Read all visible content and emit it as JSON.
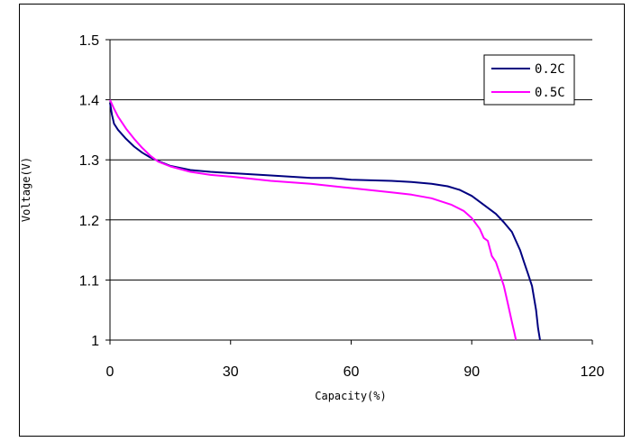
{
  "chart_data": {
    "type": "line",
    "xlabel": "Capacity(%)",
    "ylabel": "Voltage(V)",
    "xlim": [
      0,
      120
    ],
    "ylim": [
      1.0,
      1.5
    ],
    "xticks": [
      "0",
      "30",
      "60",
      "90",
      "120"
    ],
    "yticks": [
      "1",
      "1.1",
      "1.2",
      "1.3",
      "1.4",
      "1.5"
    ],
    "grid": "horizontal",
    "legend_position": "top-right",
    "series": [
      {
        "name": "0.2C",
        "color": "#000080",
        "x": [
          0,
          0.5,
          1,
          2,
          4,
          6,
          8,
          10,
          12,
          15,
          20,
          25,
          30,
          40,
          50,
          55,
          60,
          70,
          75,
          80,
          84,
          87,
          90,
          93,
          96,
          98,
          100,
          102,
          103,
          104,
          105,
          106,
          106.5,
          107
        ],
        "y": [
          1.395,
          1.375,
          1.36,
          1.35,
          1.335,
          1.322,
          1.312,
          1.304,
          1.298,
          1.29,
          1.283,
          1.28,
          1.278,
          1.274,
          1.27,
          1.27,
          1.267,
          1.265,
          1.263,
          1.26,
          1.256,
          1.25,
          1.24,
          1.225,
          1.21,
          1.196,
          1.18,
          1.15,
          1.13,
          1.11,
          1.09,
          1.05,
          1.02,
          1.0
        ]
      },
      {
        "name": "0.5C",
        "color": "#ff00ff",
        "x": [
          0,
          1,
          2,
          4,
          6,
          8,
          10,
          12,
          15,
          20,
          25,
          30,
          40,
          50,
          60,
          70,
          75,
          80,
          85,
          88,
          90,
          92,
          93,
          94,
          95,
          96,
          97,
          98,
          99,
          100,
          100.5,
          101
        ],
        "y": [
          1.4,
          1.385,
          1.372,
          1.352,
          1.335,
          1.32,
          1.307,
          1.297,
          1.289,
          1.28,
          1.275,
          1.272,
          1.265,
          1.26,
          1.253,
          1.246,
          1.242,
          1.236,
          1.225,
          1.215,
          1.203,
          1.185,
          1.17,
          1.165,
          1.14,
          1.13,
          1.11,
          1.09,
          1.06,
          1.03,
          1.015,
          1.0
        ]
      }
    ]
  }
}
